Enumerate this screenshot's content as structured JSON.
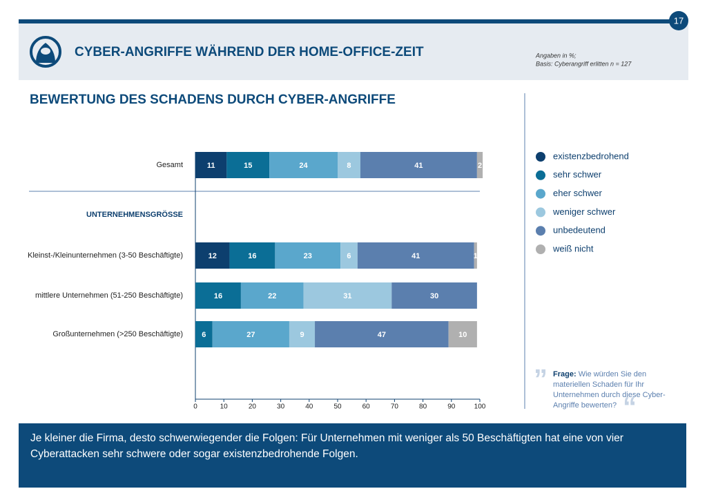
{
  "page_number": "17",
  "header": {
    "title": "CYBER-ANGRIFFE WÄHREND DER HOME-OFFICE-ZEIT",
    "note_1": "Angaben in %;",
    "note_2": "Basis: Cyberangriff erlitten n = 127"
  },
  "chart_data": {
    "type": "stacked_bar_horizontal",
    "title": "BEWERTUNG DES SCHADENS DURCH CYBER-ANGRIFFE",
    "section_label": "UNTERNEHMENSGRÖSSE",
    "categories": [
      "Gesamt",
      "Kleinst-/Kleinunternehmen (3-50 Beschäftigte)",
      "mittlere Unternehmen (51-250 Beschäftigte)",
      "Großunternehmen (>250 Beschäftigte)"
    ],
    "series": [
      {
        "name": "existenzbedrohend",
        "color": "#0d3f6e",
        "values": [
          11,
          12,
          null,
          null
        ]
      },
      {
        "name": "sehr schwer",
        "color": "#0b6e96",
        "values": [
          15,
          16,
          16,
          6
        ]
      },
      {
        "name": "eher schwer",
        "color": "#5aa7cc",
        "values": [
          24,
          23,
          22,
          27
        ]
      },
      {
        "name": "weniger schwer",
        "color": "#9cc8df",
        "values": [
          8,
          6,
          31,
          9
        ]
      },
      {
        "name": "unbedeutend",
        "color": "#5b7fae",
        "values": [
          41,
          41,
          30,
          47
        ]
      },
      {
        "name": "weiß nicht",
        "color": "#b0b0b0",
        "values": [
          2,
          1,
          null,
          10
        ]
      }
    ],
    "xlim": [
      0,
      100
    ],
    "xticks": [
      0,
      10,
      20,
      30,
      40,
      50,
      60,
      70,
      80,
      90,
      100
    ],
    "legend": "right"
  },
  "question": {
    "label": "Frage:",
    "text": "Wie würden Sie den materiellen Schaden für Ihr Unternehmen durch diese Cyber-Angriffe bewerten?"
  },
  "footer": {
    "text": "Je kleiner die Firma, desto schwerwiegender die Folgen: Für Unternehmen mit weniger als 50 Beschäftigten hat eine von vier Cyberattacken sehr schwere oder sogar existenzbedrohende Folgen."
  }
}
